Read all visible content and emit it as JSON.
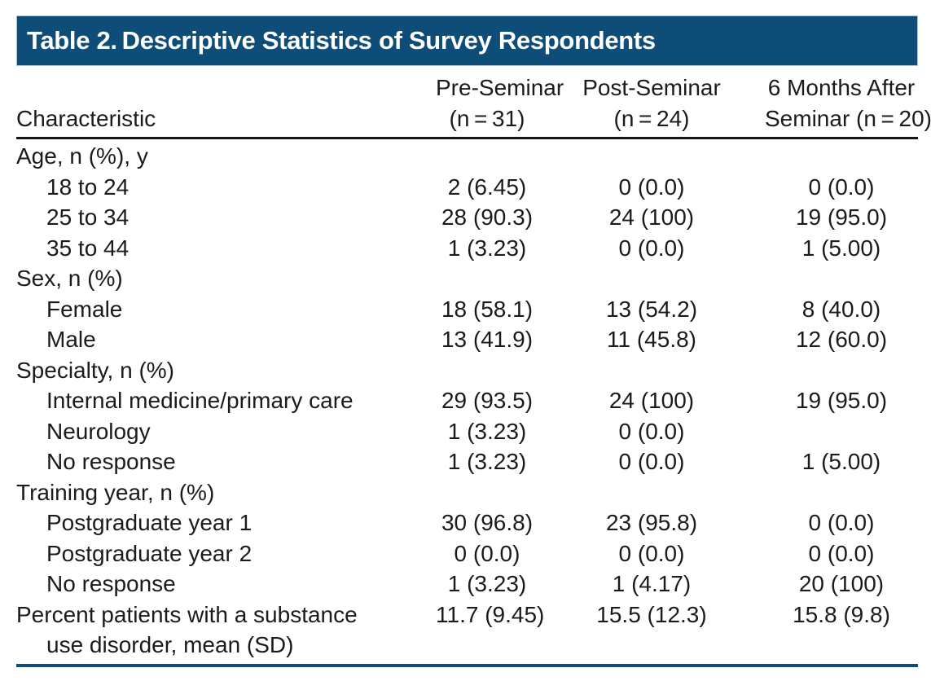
{
  "title_bar": {
    "title": "Table 2. Descriptive Statistics of Survey Respondents"
  },
  "table": {
    "header": {
      "characteristic": "Characteristic",
      "pre_seminar": {
        "line1": "Pre-Seminar",
        "line2": "(n = 31)"
      },
      "post_seminar": {
        "line1": "Post-Seminar",
        "line2": "(n = 24)"
      },
      "six_months": {
        "line1": "6 Months After",
        "line2": "Seminar (n = 20)"
      }
    },
    "rows": [
      {
        "label": "Age, n (%), y",
        "indent": false,
        "values": [
          "",
          "",
          ""
        ]
      },
      {
        "label": "18 to 24",
        "indent": true,
        "values": [
          "2 (6.45)",
          "0 (0.0)",
          "0 (0.0)"
        ]
      },
      {
        "label": "25 to 34",
        "indent": true,
        "values": [
          "28 (90.3)",
          "24 (100)",
          "19 (95.0)"
        ]
      },
      {
        "label": "35 to 44",
        "indent": true,
        "values": [
          "1 (3.23)",
          "0 (0.0)",
          "1 (5.00)"
        ]
      },
      {
        "label": "Sex, n (%)",
        "indent": false,
        "values": [
          "",
          "",
          ""
        ]
      },
      {
        "label": "Female",
        "indent": true,
        "values": [
          "18 (58.1)",
          "13 (54.2)",
          "8 (40.0)"
        ]
      },
      {
        "label": "Male",
        "indent": true,
        "values": [
          "13 (41.9)",
          "11 (45.8)",
          "12 (60.0)"
        ]
      },
      {
        "label": "Specialty, n (%)",
        "indent": false,
        "values": [
          "",
          "",
          ""
        ]
      },
      {
        "label": "Internal medicine/primary care",
        "indent": true,
        "values": [
          "29 (93.5)",
          "24 (100)",
          "19 (95.0)"
        ]
      },
      {
        "label": "Neurology",
        "indent": true,
        "values": [
          "1 (3.23)",
          "0 (0.0)",
          ""
        ]
      },
      {
        "label": "No response",
        "indent": true,
        "values": [
          "1 (3.23)",
          "0 (0.0)",
          "1 (5.00)"
        ]
      },
      {
        "label": "Training year, n (%)",
        "indent": false,
        "values": [
          "",
          "",
          ""
        ]
      },
      {
        "label": "Postgraduate year 1",
        "indent": true,
        "values": [
          "30 (96.8)",
          "23 (95.8)",
          "0 (0.0)"
        ]
      },
      {
        "label": "Postgraduate year 2",
        "indent": true,
        "values": [
          "0 (0.0)",
          "0 (0.0)",
          "0 (0.0)"
        ]
      },
      {
        "label": "No response",
        "indent": true,
        "values": [
          "1 (3.23)",
          "1 (4.17)",
          "20 (100)"
        ]
      },
      {
        "label": "Percent patients with a substance",
        "label2": "use disorder, mean (SD)",
        "indent": false,
        "values": [
          "11.7 (9.45)",
          "15.5 (12.3)",
          "15.8 (9.8)"
        ]
      }
    ]
  },
  "colors": {
    "accent_blue": "#0e4d78",
    "rule_black": "#161616",
    "title_text": "#ffffff"
  }
}
